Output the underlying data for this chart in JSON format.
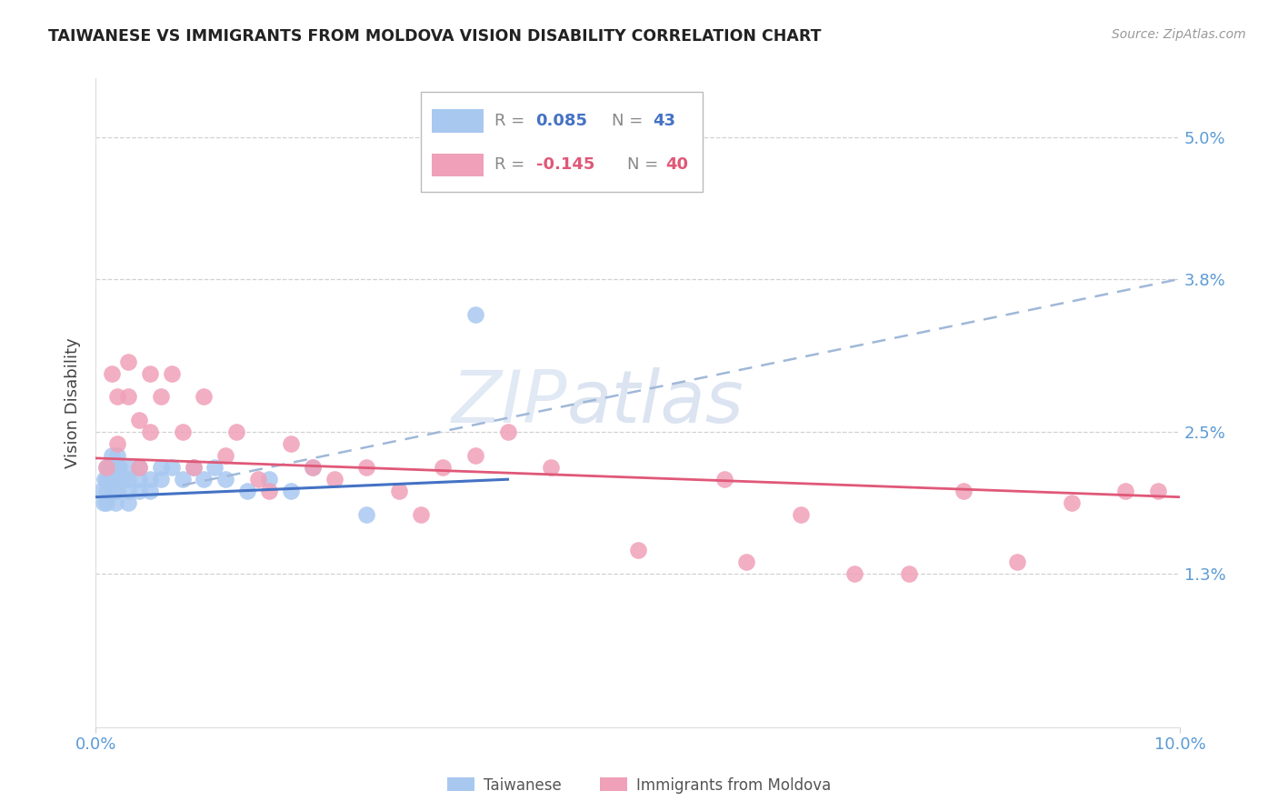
{
  "title": "TAIWANESE VS IMMIGRANTS FROM MOLDOVA VISION DISABILITY CORRELATION CHART",
  "source": "Source: ZipAtlas.com",
  "ylabel": "Vision Disability",
  "ytick_labels": [
    "5.0%",
    "3.8%",
    "2.5%",
    "1.3%"
  ],
  "ytick_values": [
    0.05,
    0.038,
    0.025,
    0.013
  ],
  "xmin": 0.0,
  "xmax": 0.1,
  "ymin": 0.0,
  "ymax": 0.055,
  "legend_r1": "0.085",
  "legend_n1": "43",
  "legend_r2": "-0.145",
  "legend_n2": "40",
  "color_taiwanese": "#A8C8F0",
  "color_moldova": "#F0A0B8",
  "color_trend_taiwanese_solid": "#4472C4",
  "color_trend_taiwanese_dash": "#A0B8D8",
  "color_trend_moldova": "#E05878",
  "background_color": "#FFFFFF",
  "grid_color": "#CCCCCC",
  "axis_label_color": "#5B9BD5",
  "watermark_color": "#C8D8EC",
  "taiwanese_x": [
    0.0005,
    0.0007,
    0.0008,
    0.001,
    0.001,
    0.001,
    0.001,
    0.0012,
    0.0013,
    0.0015,
    0.0015,
    0.0016,
    0.0017,
    0.0018,
    0.002,
    0.002,
    0.002,
    0.002,
    0.0022,
    0.0025,
    0.003,
    0.003,
    0.003,
    0.003,
    0.004,
    0.004,
    0.004,
    0.005,
    0.005,
    0.006,
    0.006,
    0.007,
    0.008,
    0.009,
    0.01,
    0.011,
    0.012,
    0.014,
    0.016,
    0.018,
    0.02,
    0.025,
    0.035
  ],
  "taiwanese_y": [
    0.02,
    0.019,
    0.021,
    0.022,
    0.021,
    0.02,
    0.019,
    0.022,
    0.021,
    0.023,
    0.022,
    0.021,
    0.02,
    0.019,
    0.023,
    0.022,
    0.021,
    0.02,
    0.022,
    0.021,
    0.022,
    0.021,
    0.02,
    0.019,
    0.022,
    0.021,
    0.02,
    0.021,
    0.02,
    0.022,
    0.021,
    0.022,
    0.021,
    0.022,
    0.021,
    0.022,
    0.021,
    0.02,
    0.021,
    0.02,
    0.022,
    0.018,
    0.035
  ],
  "moldova_x": [
    0.001,
    0.0015,
    0.002,
    0.002,
    0.003,
    0.003,
    0.004,
    0.004,
    0.005,
    0.005,
    0.006,
    0.007,
    0.008,
    0.009,
    0.01,
    0.012,
    0.013,
    0.015,
    0.016,
    0.018,
    0.02,
    0.022,
    0.025,
    0.028,
    0.03,
    0.032,
    0.035,
    0.038,
    0.042,
    0.05,
    0.058,
    0.06,
    0.065,
    0.07,
    0.075,
    0.08,
    0.085,
    0.09,
    0.095,
    0.098
  ],
  "moldova_y": [
    0.022,
    0.03,
    0.028,
    0.024,
    0.031,
    0.028,
    0.026,
    0.022,
    0.03,
    0.025,
    0.028,
    0.03,
    0.025,
    0.022,
    0.028,
    0.023,
    0.025,
    0.021,
    0.02,
    0.024,
    0.022,
    0.021,
    0.022,
    0.02,
    0.018,
    0.022,
    0.023,
    0.025,
    0.022,
    0.015,
    0.021,
    0.014,
    0.018,
    0.013,
    0.013,
    0.02,
    0.014,
    0.019,
    0.02,
    0.02
  ]
}
